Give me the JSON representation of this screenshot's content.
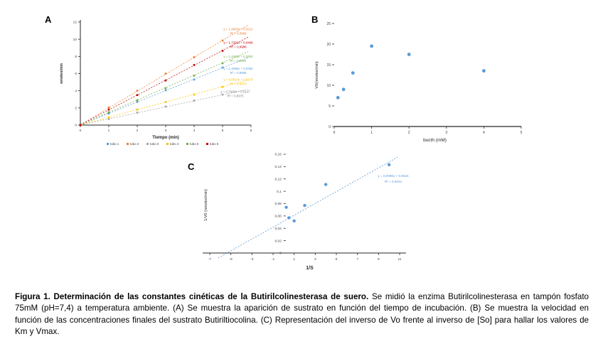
{
  "caption": {
    "bold": "Figura 1. Determinación de las constantes cinéticas de la Butirilcolinesterasa de suero.",
    "rest": " Se midió la enzima Butirilcolinesterasa en tampón fosfato 75mM (pH=7,4) a temperatura ambiente. (A) Se muestra la aparición de sustrato en función del tiempo de incubación. (B) Se muestra la velocidad en función de las concentraciones finales del sustrato Butiriltiocolina. (C) Representación del inverso de Vo frente al inverso de [So] para hallar los valores de Km y Vmax."
  },
  "chart_data": [
    {
      "id": "A",
      "panel_label": "A",
      "type": "scatter",
      "title": "",
      "xlabel": "Tiempo (min)",
      "ylabel": "nmoles/min",
      "x": [
        0,
        1,
        2,
        3,
        4,
        5
      ],
      "xlim": [
        0,
        6
      ],
      "ylim": [
        0,
        12
      ],
      "xticks": [
        0,
        1,
        2,
        3,
        4,
        5,
        6
      ],
      "yticks": [
        0,
        2,
        4,
        6,
        8,
        10,
        12
      ],
      "grid": false,
      "legend_position": "bottom",
      "series": [
        {
          "name": "tubo 1",
          "color": "#5B9BD5",
          "values": [
            0,
            1.35,
            2.7,
            4.05,
            5.3,
            6.7
          ],
          "trendline": {
            "slope": 1.3286,
            "intercept": 0.03
          },
          "equation": "y = 1,3286x + 0,0252",
          "r2": "R² = 0,9985",
          "eq_x": 5.55,
          "eq_y": 6.3
        },
        {
          "name": "tubo 2",
          "color": "#ED7D31",
          "values": [
            0,
            2.05,
            4.0,
            6.0,
            7.9,
            9.85
          ],
          "trendline": {
            "slope": 1.9693,
            "intercept": 0.02
          },
          "equation": "y = 1,9693x + 0,0212",
          "r2": "R² = 0,9996",
          "eq_x": 5.55,
          "eq_y": 10.9
        },
        {
          "name": "tubo 3",
          "color": "#A5A5A5",
          "values": [
            0,
            0.7,
            1.45,
            2.15,
            2.85,
            3.55
          ],
          "trendline": {
            "slope": 0.7029,
            "intercept": 0.015
          },
          "equation": "y = 0,7029x + 0,0147",
          "r2": "R² = 0,9975",
          "eq_x": 5.45,
          "eq_y": 3.6,
          "eq_color": "#7F7F7F"
        },
        {
          "name": "tubo 4",
          "color": "#FFC000",
          "values": [
            0,
            0.9,
            1.8,
            2.7,
            3.55,
            4.45
          ],
          "trendline": {
            "slope": 0.8914,
            "intercept": 0.02
          },
          "equation": "y = 0,8914x + 0,0178",
          "r2": "R² = 0,9979",
          "eq_x": 5.55,
          "eq_y": 5.0
        },
        {
          "name": "tubo 5",
          "color": "#70AD47",
          "values": [
            0,
            1.5,
            2.9,
            4.3,
            5.75,
            7.2
          ],
          "trendline": {
            "slope": 1.4453,
            "intercept": 0.03
          },
          "equation": "y = 1,4453x + 0,0304",
          "r2": "R² = 0,9991",
          "eq_x": 5.55,
          "eq_y": 7.7
        },
        {
          "name": "tubo 6",
          "color": "#C00000",
          "values": [
            0,
            1.8,
            3.5,
            5.2,
            7.0,
            8.65
          ],
          "trendline": {
            "slope": 1.7291,
            "intercept": 0.04
          },
          "equation": "y = 1,7291x + 0,0468",
          "r2": "R² = 0,9988",
          "eq_x": 5.55,
          "eq_y": 9.3
        }
      ]
    },
    {
      "id": "B",
      "panel_label": "B",
      "type": "scatter",
      "title": "",
      "xlabel": "bucth (mM)",
      "ylabel": "V0(nmoles/min)",
      "xlim": [
        0,
        5
      ],
      "ylim": [
        0,
        25
      ],
      "xticks": [
        0,
        1,
        2,
        3,
        4,
        5
      ],
      "yticks": [
        0,
        5,
        10,
        15,
        20,
        25
      ],
      "grid": false,
      "color": "#5B9BD5",
      "points": [
        [
          0.1,
          7
        ],
        [
          0.25,
          9
        ],
        [
          0.5,
          13
        ],
        [
          1,
          19.5
        ],
        [
          2,
          17.5
        ],
        [
          4,
          13.5
        ]
      ]
    },
    {
      "id": "C",
      "panel_label": "C",
      "type": "scatter",
      "title": "",
      "xlabel": "1/S",
      "ylabel": "1/V0 (nmoles/min)",
      "xlim": [
        -7,
        11
      ],
      "ylim": [
        0,
        0.16
      ],
      "xticks": [
        -7,
        -5,
        -3,
        -1,
        1,
        3,
        5,
        7,
        9,
        11
      ],
      "ytick_values": [
        0,
        0.02,
        0.04,
        0.06,
        0.08,
        0.1,
        0.12,
        0.14,
        0.16
      ],
      "ytick_labels": [
        "0",
        "0,02",
        "0,04",
        "0,06",
        "0,08",
        "0,1",
        "0,12",
        "0,14",
        "0,16"
      ],
      "grid": false,
      "color": "#5B9BD5",
      "points": [
        [
          0.25,
          0.074
        ],
        [
          0.5,
          0.057
        ],
        [
          1,
          0.052
        ],
        [
          2,
          0.077
        ],
        [
          4,
          0.111
        ],
        [
          10,
          0.143
        ]
      ],
      "trendline": {
        "slope": 0.0096,
        "intercept": 0.0515,
        "x_start": -6.2,
        "x_end": 10.8
      },
      "equation": "y = 0,0096x + 0,0515",
      "r2": "R² = 0,9242"
    }
  ]
}
